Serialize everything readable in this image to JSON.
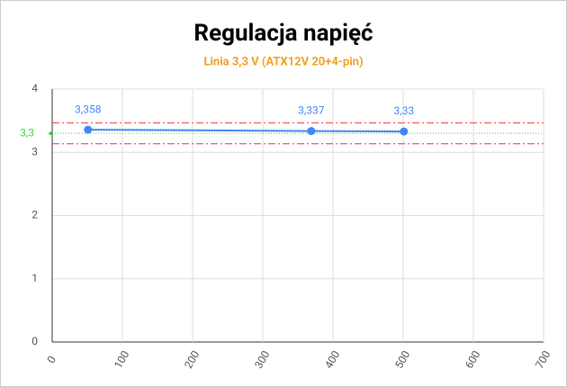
{
  "chart_data": {
    "type": "line",
    "title": "Regulacja napięć",
    "subtitle": "Linia 3,3 V (ATX12V 20+4-pin)",
    "x": [
      51,
      369,
      501
    ],
    "series": [
      {
        "name": null,
        "color": "#4285f4",
        "values": [
          3.358,
          3.337,
          3.33
        ],
        "value_labels": [
          "3,358",
          "3,337",
          "3,33"
        ]
      }
    ],
    "xlim": [
      0,
      700
    ],
    "xticks": [
      0,
      100,
      200,
      300,
      400,
      500,
      600,
      700
    ],
    "ylim": [
      0,
      4
    ],
    "yticks": [
      0,
      1,
      2,
      3,
      4
    ],
    "grid": true,
    "reference_line": {
      "value": 3.3,
      "label": "3,3",
      "color": "#33dd33"
    },
    "tolerance_lines": {
      "values": [
        3.135,
        3.465
      ],
      "color": "#ee3333"
    }
  }
}
